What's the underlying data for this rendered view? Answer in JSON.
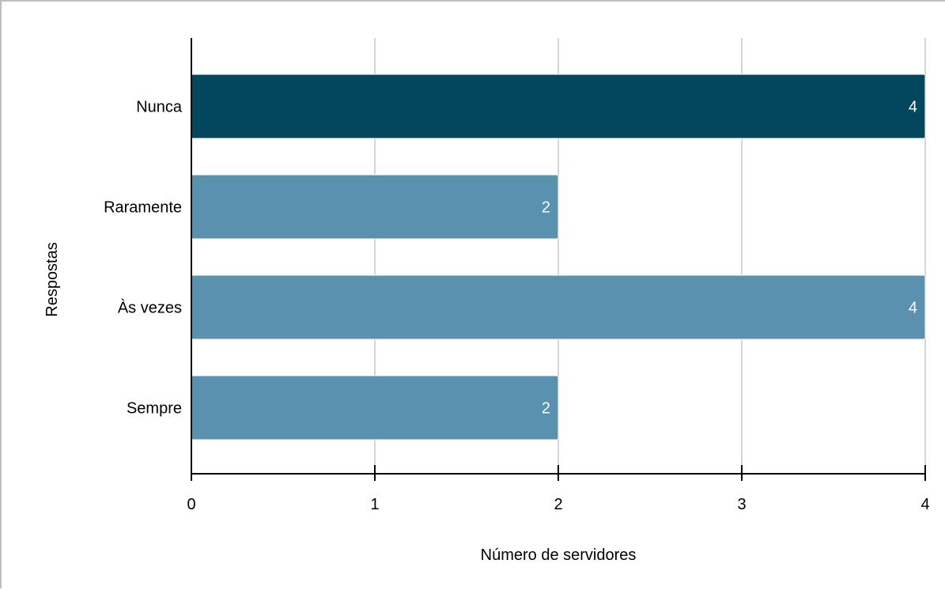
{
  "chart_data": {
    "type": "bar",
    "orientation": "horizontal",
    "xlabel": "Número de servidores",
    "ylabel": "Respostas",
    "xlim": [
      0,
      4
    ],
    "xticks": [
      0,
      1,
      2,
      3,
      4
    ],
    "grid": true,
    "categories": [
      "Nunca",
      "Raramente",
      "Às vezes",
      "Sempre"
    ],
    "values": [
      4,
      2,
      4,
      2
    ],
    "data_labels": [
      "4",
      "2",
      "4",
      "2"
    ],
    "bar_colors": [
      "#03475f",
      "#5a91ae",
      "#5a91ae",
      "#5a91ae"
    ],
    "highlight_color": "#03475f",
    "base_color": "#5a91ae",
    "grid_color": "#c8c8c8",
    "axis_color": "#000000"
  }
}
